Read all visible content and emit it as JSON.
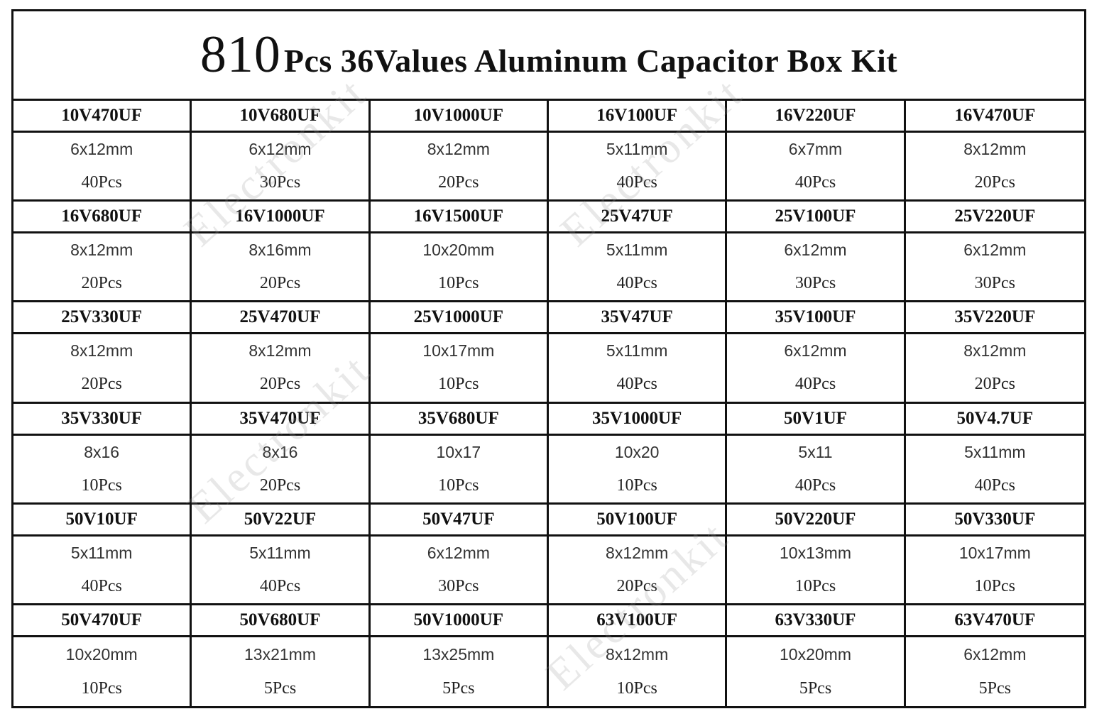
{
  "title": {
    "count": "810",
    "rest": "Pcs 36Values Aluminum Capacitor Box Kit"
  },
  "watermark": "Electronkit",
  "items": [
    {
      "value": "10V470UF",
      "size": "6x12mm",
      "qty": "40Pcs"
    },
    {
      "value": "10V680UF",
      "size": "6x12mm",
      "qty": "30Pcs"
    },
    {
      "value": "10V1000UF",
      "size": "8x12mm",
      "qty": "20Pcs"
    },
    {
      "value": "16V100UF",
      "size": "5x11mm",
      "qty": "40Pcs"
    },
    {
      "value": "16V220UF",
      "size": "6x7mm",
      "qty": "40Pcs"
    },
    {
      "value": "16V470UF",
      "size": "8x12mm",
      "qty": "20Pcs"
    },
    {
      "value": "16V680UF",
      "size": "8x12mm",
      "qty": "20Pcs"
    },
    {
      "value": "16V1000UF",
      "size": "8x16mm",
      "qty": "20Pcs"
    },
    {
      "value": "16V1500UF",
      "size": "10x20mm",
      "qty": "10Pcs"
    },
    {
      "value": "25V47UF",
      "size": "5x11mm",
      "qty": "40Pcs"
    },
    {
      "value": "25V100UF",
      "size": "6x12mm",
      "qty": "30Pcs"
    },
    {
      "value": "25V220UF",
      "size": "6x12mm",
      "qty": "30Pcs"
    },
    {
      "value": "25V330UF",
      "size": "8x12mm",
      "qty": "20Pcs"
    },
    {
      "value": "25V470UF",
      "size": "8x12mm",
      "qty": "20Pcs"
    },
    {
      "value": "25V1000UF",
      "size": "10x17mm",
      "qty": "10Pcs"
    },
    {
      "value": "35V47UF",
      "size": "5x11mm",
      "qty": "40Pcs"
    },
    {
      "value": "35V100UF",
      "size": "6x12mm",
      "qty": "40Pcs"
    },
    {
      "value": "35V220UF",
      "size": "8x12mm",
      "qty": "20Pcs"
    },
    {
      "value": "35V330UF",
      "size": "8x16",
      "qty": "10Pcs"
    },
    {
      "value": "35V470UF",
      "size": "8x16",
      "qty": "20Pcs"
    },
    {
      "value": "35V680UF",
      "size": "10x17",
      "qty": "10Pcs"
    },
    {
      "value": "35V1000UF",
      "size": "10x20",
      "qty": "10Pcs"
    },
    {
      "value": "50V1UF",
      "size": "5x11",
      "qty": "40Pcs"
    },
    {
      "value": "50V4.7UF",
      "size": "5x11mm",
      "qty": "40Pcs"
    },
    {
      "value": "50V10UF",
      "size": "5x11mm",
      "qty": "40Pcs"
    },
    {
      "value": "50V22UF",
      "size": "5x11mm",
      "qty": "40Pcs"
    },
    {
      "value": "50V47UF",
      "size": "6x12mm",
      "qty": "30Pcs"
    },
    {
      "value": "50V100UF",
      "size": "8x12mm",
      "qty": "20Pcs"
    },
    {
      "value": "50V220UF",
      "size": "10x13mm",
      "qty": "10Pcs"
    },
    {
      "value": "50V330UF",
      "size": "10x17mm",
      "qty": "10Pcs"
    },
    {
      "value": "50V470UF",
      "size": "10x20mm",
      "qty": "10Pcs"
    },
    {
      "value": "50V680UF",
      "size": "13x21mm",
      "qty": "5Pcs"
    },
    {
      "value": "50V1000UF",
      "size": "13x25mm",
      "qty": "5Pcs"
    },
    {
      "value": "63V100UF",
      "size": "8x12mm",
      "qty": "10Pcs"
    },
    {
      "value": "63V330UF",
      "size": "10x20mm",
      "qty": "5Pcs"
    },
    {
      "value": "63V470UF",
      "size": "6x12mm",
      "qty": "5Pcs"
    }
  ]
}
